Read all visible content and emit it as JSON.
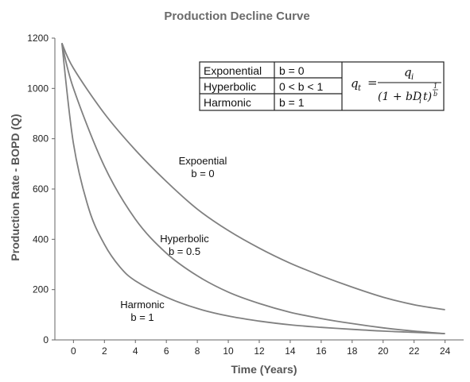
{
  "chart_data": {
    "type": "line",
    "title": "Production Decline Curve",
    "xlabel": "Time (Years)",
    "ylabel": "Production Rate - BOPD (Q)",
    "xlim": [
      -1.2,
      25.2
    ],
    "ylim": [
      0,
      1200
    ],
    "x_ticks": [
      0,
      2,
      4,
      6,
      8,
      10,
      12,
      14,
      16,
      18,
      20,
      22,
      24
    ],
    "y_ticks": [
      0,
      200,
      400,
      600,
      800,
      1000,
      1200
    ],
    "grid": false,
    "series": [
      {
        "label": [
          "Expoential",
          "b = 0"
        ],
        "x": [
          -0.75,
          0,
          2,
          4,
          6,
          8,
          10,
          12,
          14,
          16,
          18,
          20,
          22,
          24
        ],
        "values": [
          1180,
          1080,
          900,
          755,
          630,
          520,
          435,
          365,
          305,
          255,
          210,
          170,
          140,
          120
        ]
      },
      {
        "label": [
          "Hyperbolic",
          "b = 0.5"
        ],
        "x": [
          -0.75,
          0,
          2,
          4,
          6,
          8,
          10,
          12,
          14,
          16,
          18,
          20,
          22,
          24
        ],
        "values": [
          1180,
          1000,
          690,
          480,
          345,
          255,
          190,
          145,
          110,
          85,
          65,
          48,
          35,
          25
        ]
      },
      {
        "label": [
          "Harmonic",
          "b = 1"
        ],
        "x": [
          -0.75,
          0,
          1,
          2,
          3,
          4,
          6,
          8,
          10,
          12,
          14,
          16,
          18,
          20,
          22,
          24
        ],
        "values": [
          1180,
          780,
          520,
          380,
          290,
          235,
          170,
          125,
          95,
          75,
          60,
          50,
          42,
          35,
          30,
          25
        ]
      }
    ],
    "legend_table": [
      [
        "Exponential",
        "b = 0"
      ],
      [
        "Hyperbolic",
        "0 < b < 1"
      ],
      [
        "Harmonic",
        "b = 1"
      ]
    ],
    "formula": {
      "lhs": "q",
      "lhs_sub": "t",
      "numerator": "q",
      "numerator_sub": "i",
      "denominator": "(1 + bD",
      "denominator_sub": "i",
      "denominator_tail": "t)",
      "exponent_num": "1",
      "exponent_den": "b"
    }
  },
  "colors": {
    "curve": "#808080",
    "axis": "#666666",
    "title": "#6b6b6b"
  }
}
